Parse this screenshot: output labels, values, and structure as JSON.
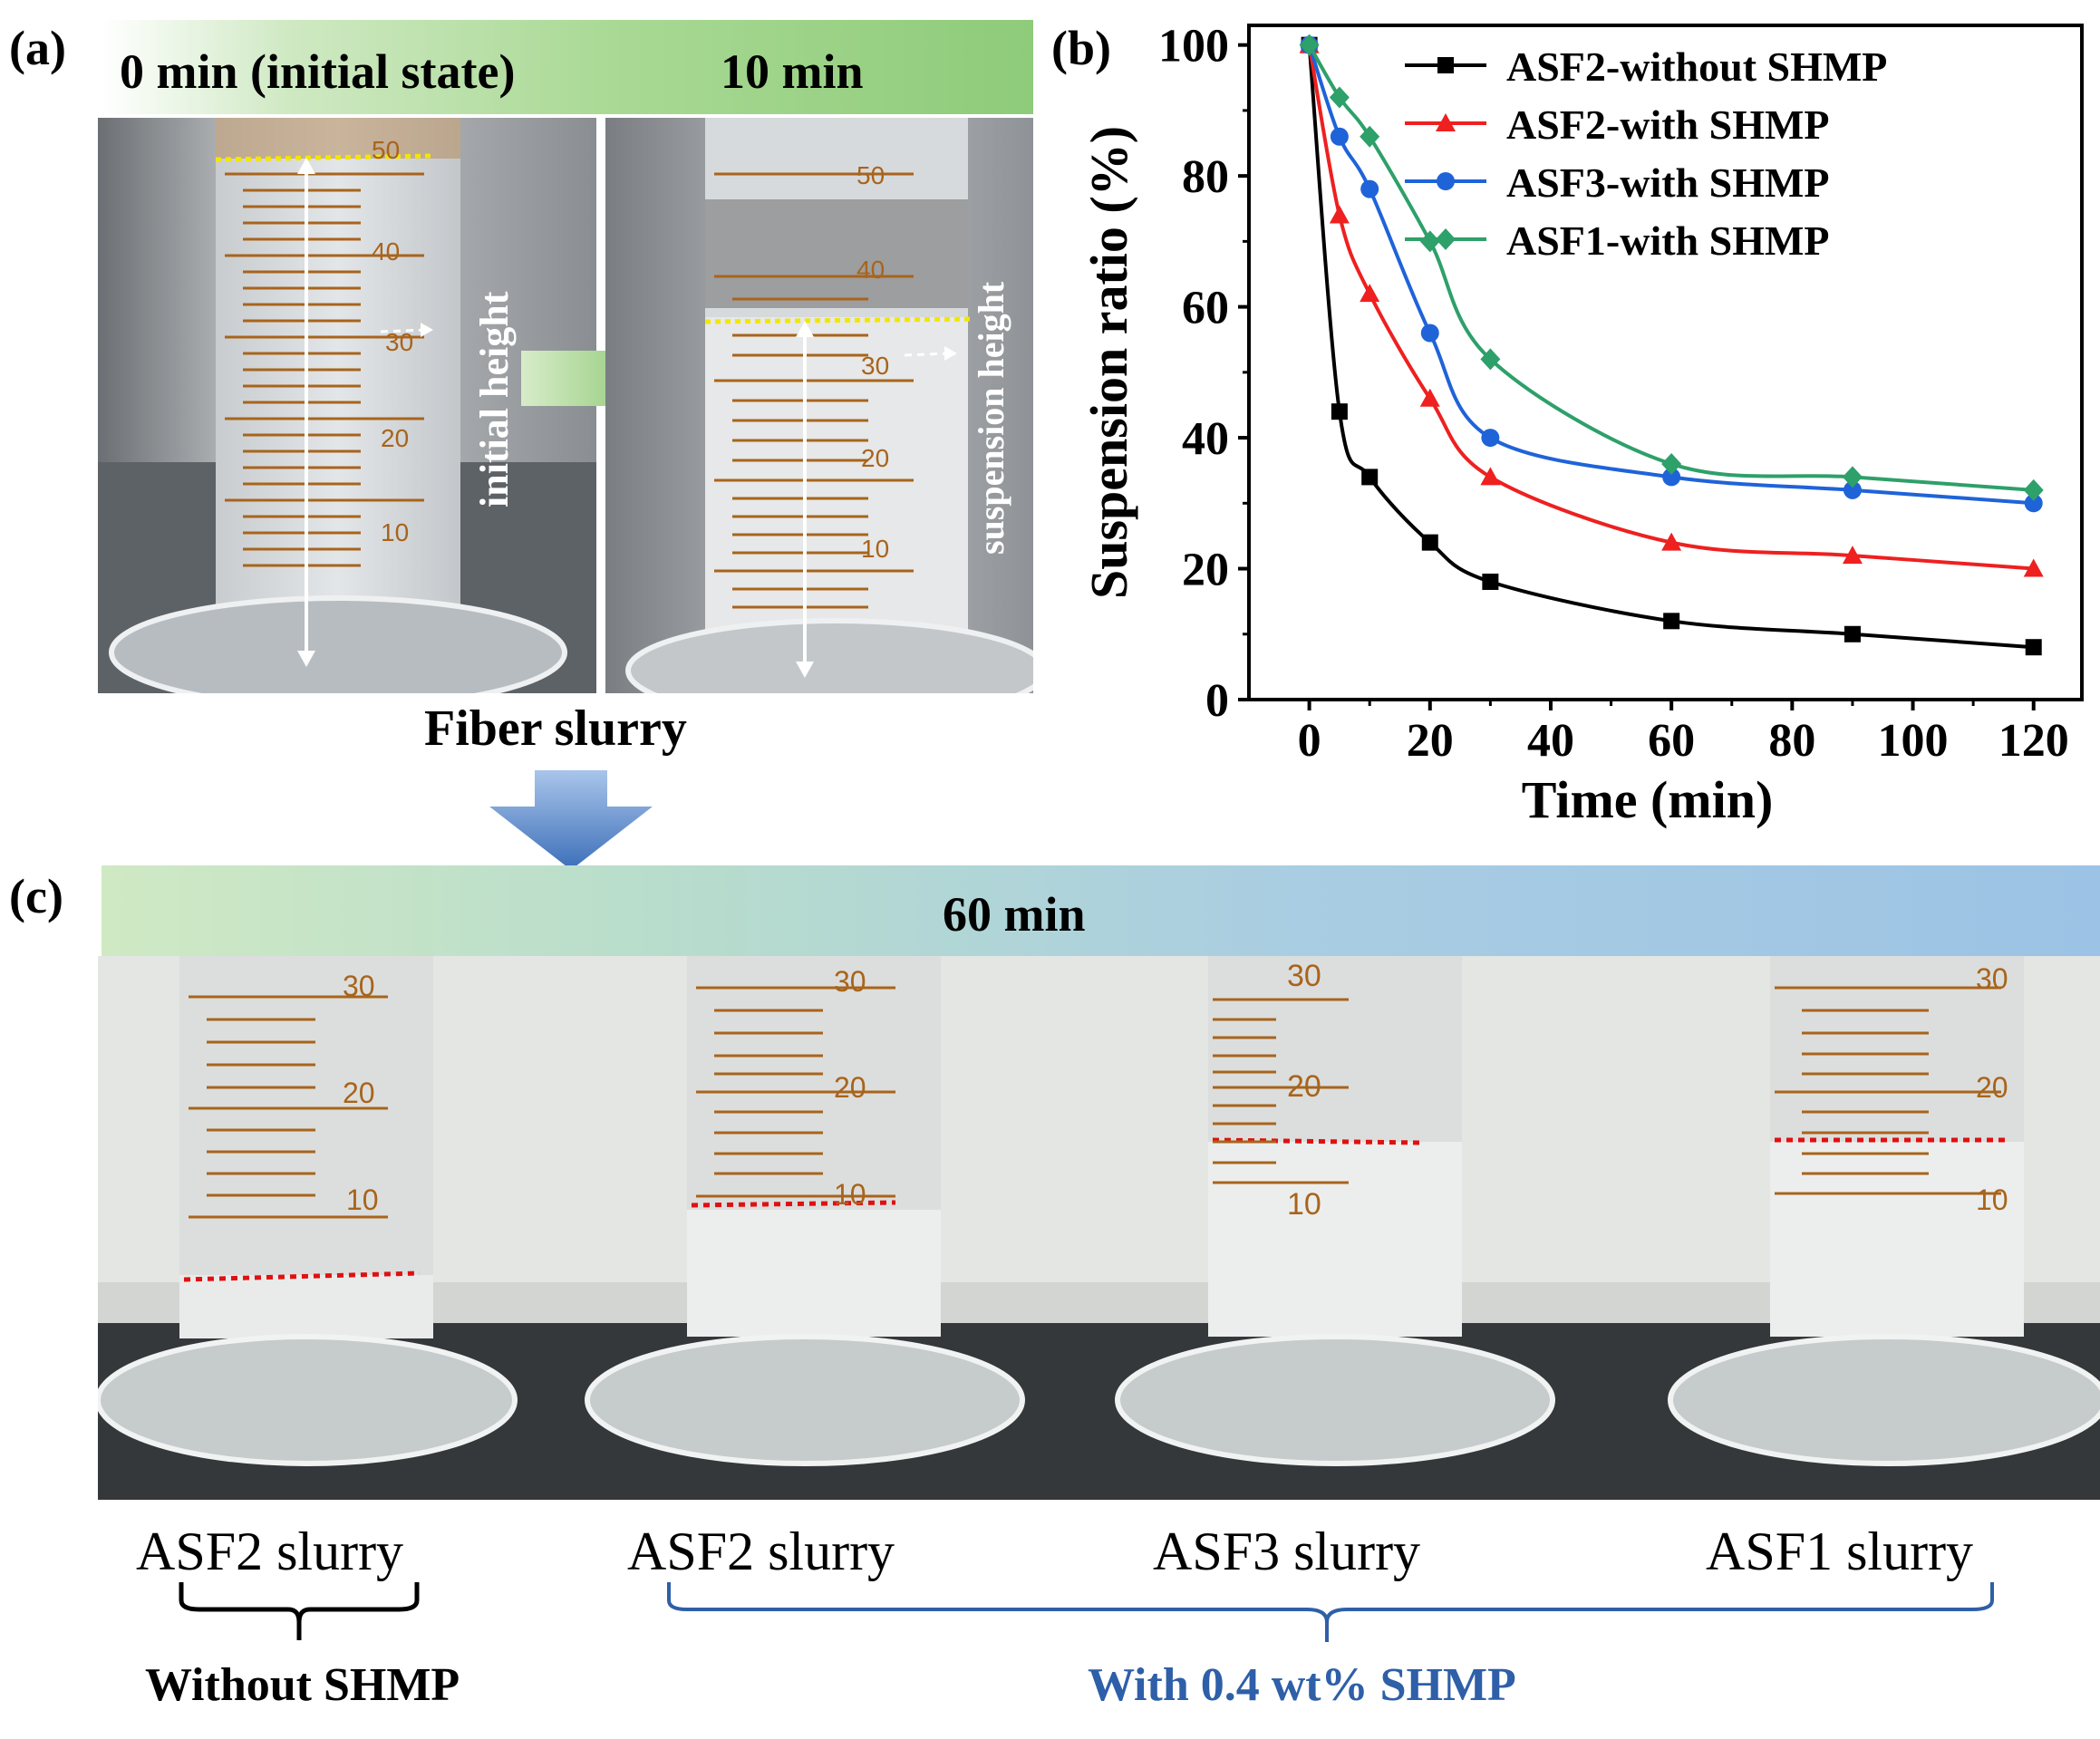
{
  "panel_a": {
    "label": "(a)",
    "header_left": "0 min (initial state)",
    "header_right": "10 min",
    "initial_height": "initial height",
    "suspension_height": "suspension height",
    "caption": "Fiber slurry",
    "scale_left": [
      "50",
      "40",
      "30",
      "20",
      "10"
    ],
    "scale_right": [
      "50",
      "40",
      "30",
      "20",
      "10"
    ]
  },
  "panel_b": {
    "label": "(b)"
  },
  "panel_c": {
    "label": "(c)",
    "header": "60 min",
    "cylinders": [
      {
        "label": "ASF2 slurry",
        "scale": [
          "30",
          "20",
          "10"
        ]
      },
      {
        "label": "ASF2 slurry",
        "scale": [
          "30",
          "20",
          "10"
        ]
      },
      {
        "label": "ASF3 slurry",
        "scale": [
          "30",
          "20",
          "10"
        ]
      },
      {
        "label": "ASF1 slurry",
        "scale": [
          "30",
          "20",
          "10"
        ]
      }
    ],
    "group_without": "Without SHMP",
    "group_with": "With 0.4 wt% SHMP"
  },
  "colors": {
    "green_header": "#8ecb7a",
    "blue_header": "#9cc3e5",
    "blue_group": "#2e5fa8",
    "yellow_line": "#f3e600",
    "red_line": "#e01010",
    "scale_brown": "#a8641c"
  },
  "chart_data": {
    "type": "line",
    "title": "",
    "xlabel": "Time (min)",
    "ylabel": "Suspension ratio (%)",
    "xlim": [
      -10,
      128
    ],
    "ylim": [
      0,
      103
    ],
    "xticks": [
      0,
      20,
      40,
      60,
      80,
      100,
      120
    ],
    "yticks": [
      0,
      20,
      40,
      60,
      80,
      100
    ],
    "x": [
      0,
      5,
      10,
      20,
      30,
      60,
      90,
      120
    ],
    "legend_position": "top-right",
    "series": [
      {
        "name": "ASF2-without SHMP",
        "color": "#000000",
        "marker": "square",
        "values": [
          100,
          44,
          34,
          24,
          18,
          12,
          10,
          8
        ]
      },
      {
        "name": "ASF2-with SHMP",
        "color": "#ee2020",
        "marker": "triangle",
        "values": [
          100,
          74,
          62,
          46,
          34,
          24,
          22,
          20
        ]
      },
      {
        "name": "ASF3-with SHMP",
        "color": "#1f63d8",
        "marker": "circle",
        "values": [
          100,
          86,
          78,
          56,
          40,
          34,
          32,
          30
        ]
      },
      {
        "name": "ASF1-with SHMP",
        "color": "#2ea06a",
        "marker": "diamond",
        "values": [
          100,
          92,
          86,
          70,
          52,
          36,
          34,
          32
        ]
      }
    ]
  }
}
